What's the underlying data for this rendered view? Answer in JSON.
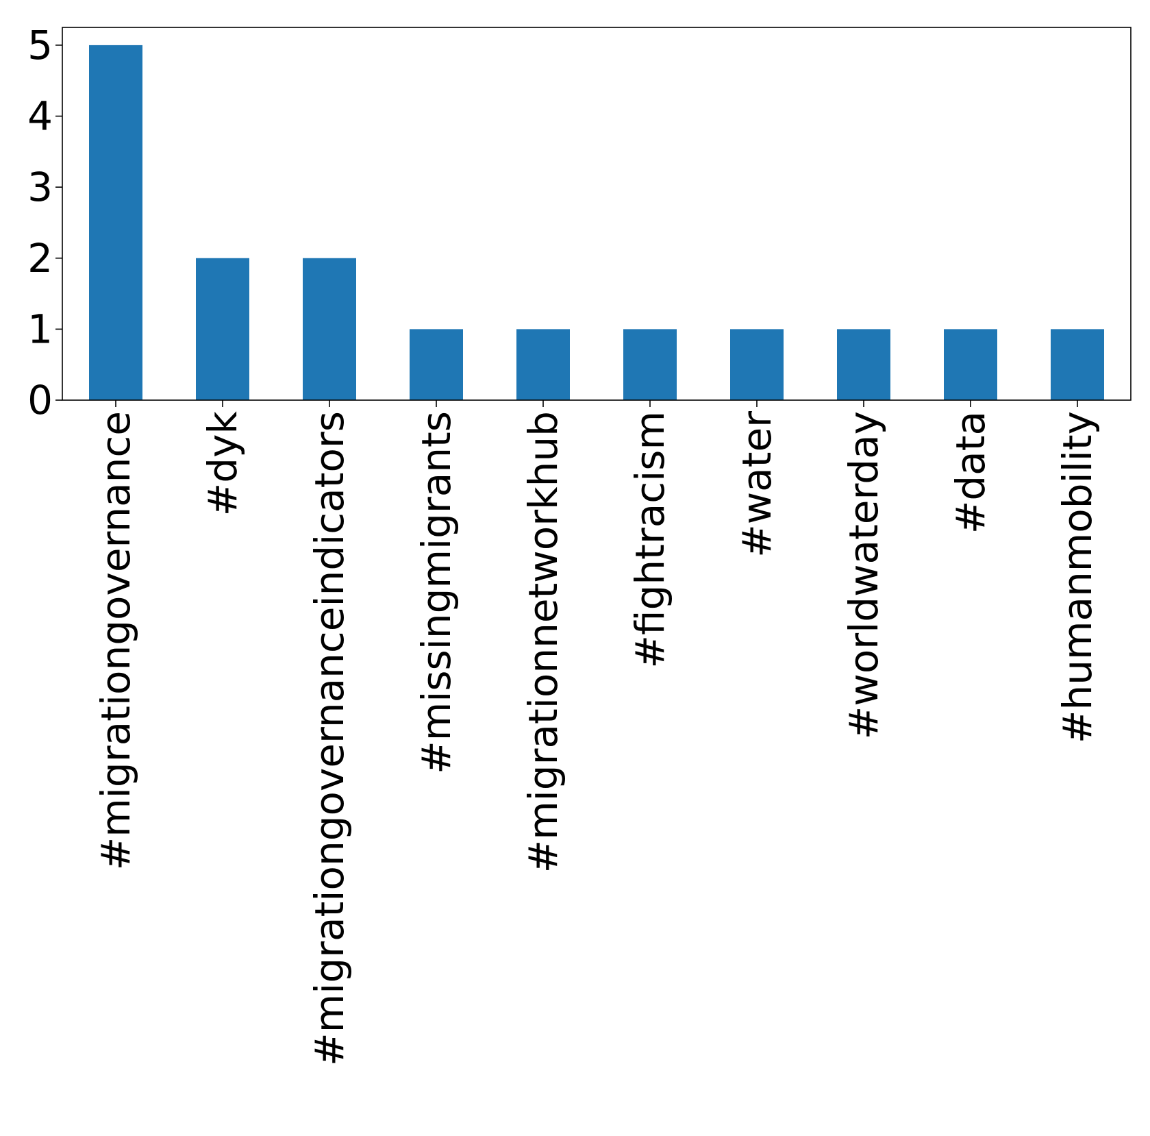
{
  "chart_data": {
    "type": "bar",
    "categories": [
      "#migrationgovernance",
      "#dyk",
      "#migrationgovernanceindicators",
      "#missingmigrants",
      "#migrationnetworkhub",
      "#fightracism",
      "#water",
      "#worldwaterday",
      "#data",
      "#humanmobility"
    ],
    "values": [
      5,
      2,
      2,
      1,
      1,
      1,
      1,
      1,
      1,
      1
    ],
    "title": "",
    "xlabel": "",
    "ylabel": "",
    "ylim": [
      0,
      5.25
    ],
    "yticks": [
      0,
      1,
      2,
      3,
      4,
      5
    ],
    "grid": false,
    "bar_color": "#1f77b4"
  }
}
